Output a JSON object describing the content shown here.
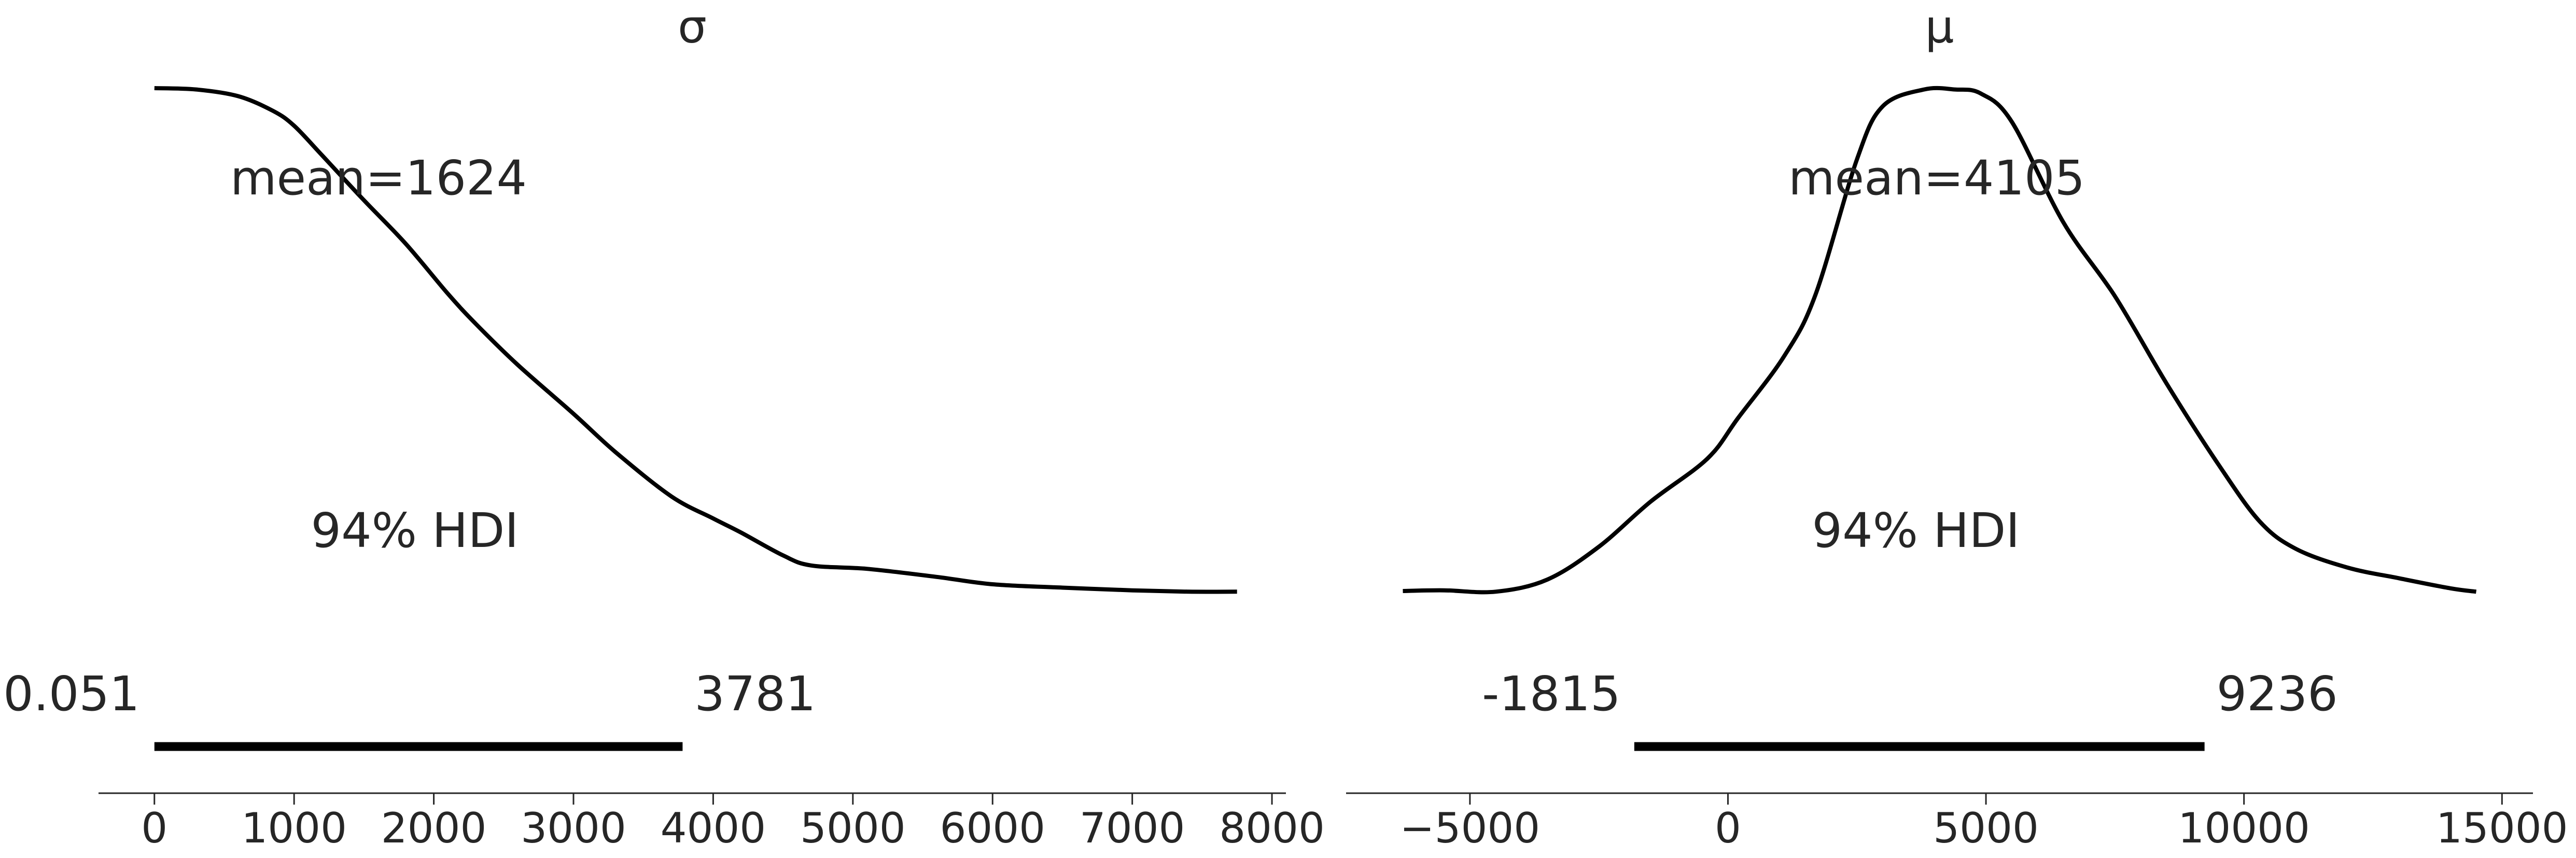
{
  "chart_data": [
    {
      "type": "line",
      "title": "σ",
      "xlabel": "",
      "ylabel": "",
      "xlim": [
        -400,
        8100
      ],
      "ylim": [
        0,
        1
      ],
      "x_ticks": [
        0,
        1000,
        2000,
        3000,
        4000,
        5000,
        6000,
        7000,
        8000
      ],
      "x_tick_labels": [
        "0",
        "1000",
        "2000",
        "3000",
        "4000",
        "5000",
        "6000",
        "7000",
        "8000"
      ],
      "series": [
        {
          "name": "posterior density",
          "x": [
            0,
            300,
            600,
            850,
            1000,
            1200,
            1500,
            1800,
            2100,
            2300,
            2600,
            3000,
            3300,
            3700,
            4000,
            4200,
            4500,
            4700,
            5100,
            5600,
            6000,
            6500,
            7000,
            7400,
            7750
          ],
          "y": [
            1.0,
            0.998,
            0.988,
            0.966,
            0.944,
            0.9,
            0.833,
            0.768,
            0.694,
            0.649,
            0.588,
            0.515,
            0.458,
            0.392,
            0.359,
            0.338,
            0.304,
            0.289,
            0.284,
            0.272,
            0.261,
            0.256,
            0.252,
            0.25,
            0.25
          ]
        }
      ],
      "mean_label": "mean=1624",
      "hdi_label": "94% HDI",
      "hdi": [
        0.051,
        3781
      ],
      "hdi_low_label": "0.051",
      "hdi_high_label": "3781"
    },
    {
      "type": "line",
      "title": "μ",
      "xlabel": "",
      "ylabel": "",
      "xlim": [
        -7400,
        15600
      ],
      "ylim": [
        0,
        1
      ],
      "x_ticks": [
        -5000,
        0,
        5000,
        10000,
        15000
      ],
      "x_tick_labels": [
        "−5000",
        "0",
        "5000",
        "10000",
        "15000"
      ],
      "series": [
        {
          "name": "posterior density",
          "x": [
            -6300,
            -5500,
            -4500,
            -3500,
            -2500,
            -1500,
            -400,
            200,
            1100,
            1700,
            2500,
            3000,
            3800,
            4400,
            4900,
            5500,
            6500,
            7500,
            8500,
            9500,
            10300,
            11000,
            12000,
            13000,
            14000,
            14500
          ],
          "y": [
            0.251,
            0.252,
            0.25,
            0.268,
            0.317,
            0.384,
            0.448,
            0.509,
            0.602,
            0.693,
            0.894,
            0.973,
            0.998,
            0.998,
            0.992,
            0.95,
            0.8,
            0.69,
            0.56,
            0.44,
            0.355,
            0.314,
            0.286,
            0.27,
            0.255,
            0.25
          ]
        }
      ],
      "mean_label": "mean=4105",
      "hdi_label": "94% HDI",
      "hdi": [
        -1815,
        9236
      ],
      "hdi_low_label": "-1815",
      "hdi_high_label": "9236"
    }
  ]
}
